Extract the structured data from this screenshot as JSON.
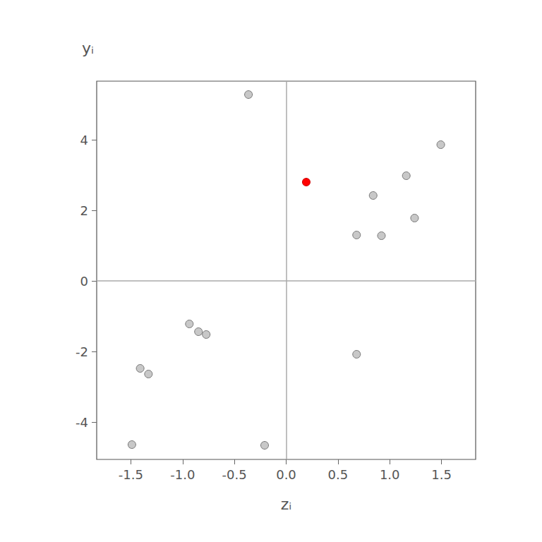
{
  "chart_data": {
    "type": "scatter",
    "x_label": "zᵢ",
    "y_label": "yᵢ",
    "xlim": [
      -1.83,
      1.83
    ],
    "xticks": [
      -1.5,
      {
        "value": -1,
        "label": "-1.0"
      },
      -0.5,
      {
        "value": 0,
        "label": "0.0"
      },
      0.5,
      {
        "value": 1,
        "label": "1.0"
      },
      1.5
    ],
    "ylim": [
      -5.06,
      5.66
    ],
    "yticks": [
      -4,
      -2,
      0,
      2,
      4
    ],
    "grid": false,
    "marker": "circle",
    "series": [
      {
        "color": "#c8c8c8",
        "x": [
          -0.364,
          1.493,
          1.16,
          0.84,
          1.24,
          0.68,
          0.92,
          0.68,
          -0.935,
          -0.847,
          -0.772,
          -1.41,
          -1.33,
          -1.49,
          -0.208
        ],
        "values": [
          5.28,
          3.86,
          2.98,
          2.42,
          1.78,
          1.3,
          1.28,
          -2.08,
          -1.22,
          -1.44,
          -1.52,
          -2.48,
          -2.64,
          -4.64,
          -4.66
        ]
      },
      {
        "color": "#ff0000",
        "x": [
          0.194
        ],
        "values": [
          2.8
        ]
      }
    ]
  }
}
